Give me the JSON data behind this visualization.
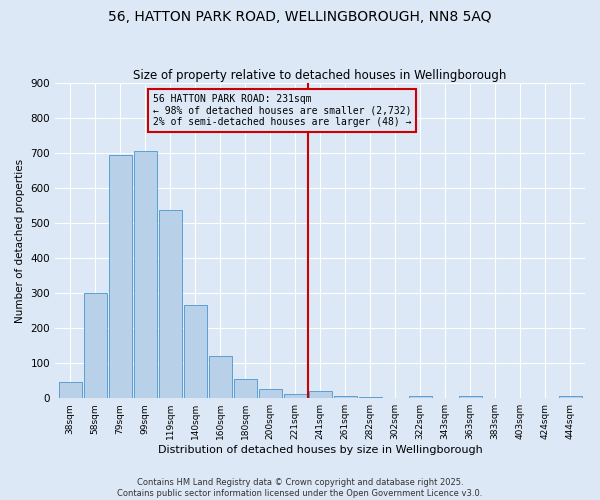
{
  "title": "56, HATTON PARK ROAD, WELLINGBOROUGH, NN8 5AQ",
  "subtitle": "Size of property relative to detached houses in Wellingborough",
  "xlabel": "Distribution of detached houses by size in Wellingborough",
  "ylabel": "Number of detached properties",
  "bar_labels": [
    "38sqm",
    "58sqm",
    "79sqm",
    "99sqm",
    "119sqm",
    "140sqm",
    "160sqm",
    "180sqm",
    "200sqm",
    "221sqm",
    "241sqm",
    "261sqm",
    "282sqm",
    "302sqm",
    "322sqm",
    "343sqm",
    "363sqm",
    "383sqm",
    "403sqm",
    "424sqm",
    "444sqm"
  ],
  "bar_values": [
    45,
    300,
    695,
    707,
    537,
    265,
    122,
    55,
    27,
    13,
    20,
    7,
    3,
    0,
    5,
    0,
    6,
    0,
    0,
    0,
    5
  ],
  "bar_color": "#b8d0e8",
  "bar_edge_color": "#5a9fd4",
  "vline_x": 9.5,
  "vline_color": "#cc0000",
  "annotation_text": "56 HATTON PARK ROAD: 231sqm\n← 98% of detached houses are smaller (2,732)\n2% of semi-detached houses are larger (48) →",
  "annotation_box_color": "#cc0000",
  "ylim": [
    0,
    900
  ],
  "yticks": [
    0,
    100,
    200,
    300,
    400,
    500,
    600,
    700,
    800,
    900
  ],
  "bg_color": "#dce8f5",
  "footnote1": "Contains HM Land Registry data © Crown copyright and database right 2025.",
  "footnote2": "Contains public sector information licensed under the Open Government Licence v3.0.",
  "title_fontsize": 10,
  "subtitle_fontsize": 8.5
}
